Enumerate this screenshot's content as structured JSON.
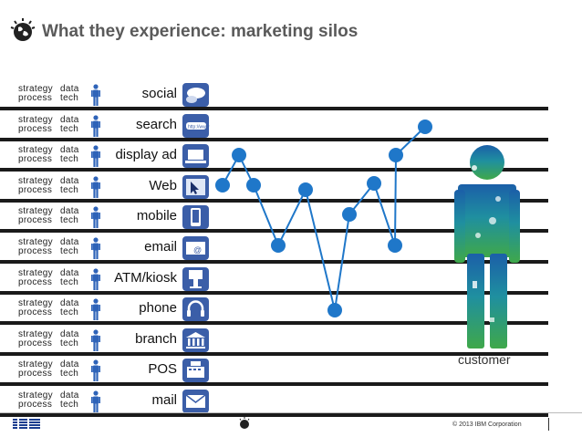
{
  "slide": {
    "title": "What they experience: marketing silos"
  },
  "row_labels": {
    "strategy": "strategy",
    "data": "data",
    "process": "process",
    "tech": "tech"
  },
  "channels": [
    {
      "label": "social",
      "icon": "speech-bubbles-icon"
    },
    {
      "label": "search",
      "icon": "search-bar-icon"
    },
    {
      "label": "display ad",
      "icon": "laptop-ad-icon"
    },
    {
      "label": "Web",
      "icon": "cursor-window-icon"
    },
    {
      "label": "mobile",
      "icon": "smartphone-icon"
    },
    {
      "label": "email",
      "icon": "envelope-at-icon"
    },
    {
      "label": "ATM/kiosk",
      "icon": "kiosk-icon"
    },
    {
      "label": "phone",
      "icon": "headset-icon"
    },
    {
      "label": "branch",
      "icon": "bank-building-icon"
    },
    {
      "label": "POS",
      "icon": "cash-register-icon"
    },
    {
      "label": "mail",
      "icon": "mail-icon"
    }
  ],
  "journey_icon": "customer-figure-icon",
  "customer_label": "customer",
  "footer": {
    "logo": "IBM",
    "copyright": "© 2013 IBM Corporation"
  },
  "colors": {
    "accent": "#1f77c9",
    "bar": "#1a1a1a",
    "icon_blue": "#3b5ea8",
    "person_blue": "#2e63b8"
  }
}
